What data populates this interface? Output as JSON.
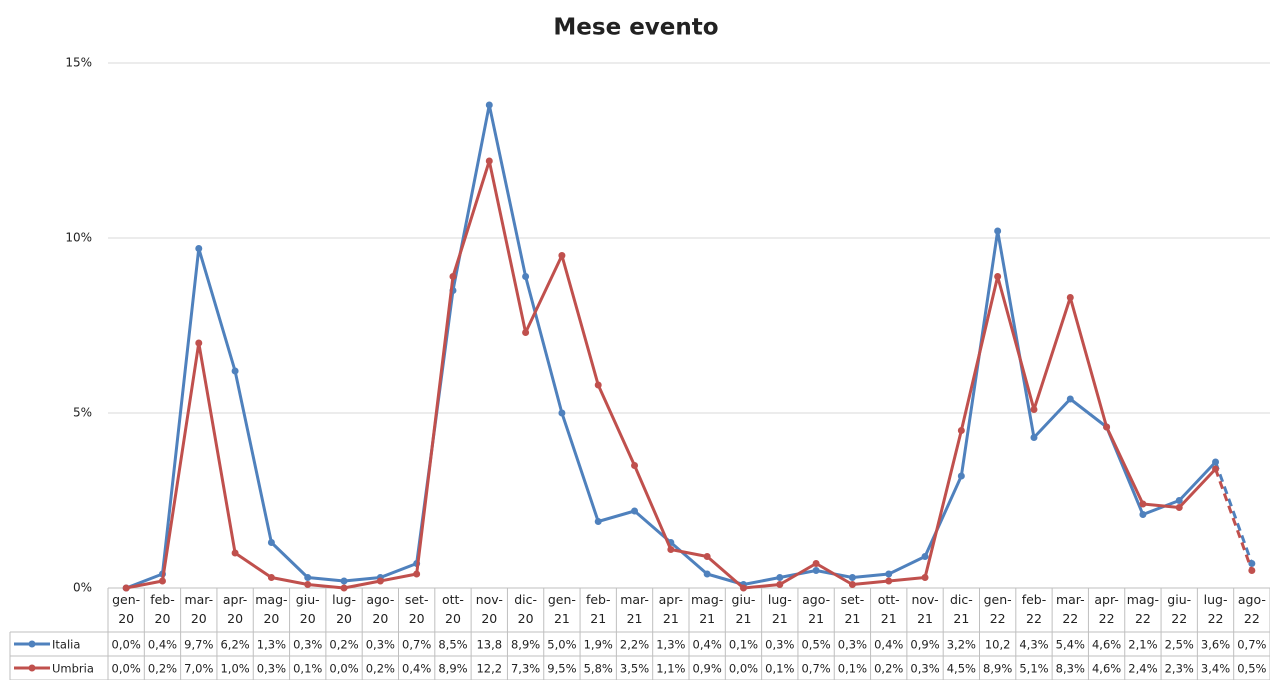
{
  "chart_data": {
    "type": "line",
    "title": "Mese evento",
    "categories": [
      "gen-20",
      "feb-20",
      "mar-20",
      "apr-20",
      "mag-20",
      "giu-20",
      "lug-20",
      "ago-20",
      "set-20",
      "ott-20",
      "nov-20",
      "dic-20",
      "gen-21",
      "feb-21",
      "mar-21",
      "apr-21",
      "mag-21",
      "giu-21",
      "lug-21",
      "ago-21",
      "set-21",
      "ott-21",
      "nov-21",
      "dic-21",
      "gen-22",
      "feb-22",
      "mar-22",
      "apr-22",
      "mag-22",
      "giu-22",
      "lug-22",
      "ago-22"
    ],
    "series": [
      {
        "name": "Italia",
        "color": "#4f81bd",
        "values": [
          0.0,
          0.4,
          9.7,
          6.2,
          1.3,
          0.3,
          0.2,
          0.3,
          0.7,
          8.5,
          13.8,
          8.9,
          5.0,
          1.9,
          2.2,
          1.3,
          0.4,
          0.1,
          0.3,
          0.5,
          0.3,
          0.4,
          0.9,
          3.2,
          10.2,
          4.3,
          5.4,
          4.6,
          2.1,
          2.5,
          3.6,
          0.7
        ],
        "value_labels": [
          "0,0%",
          "0,4%",
          "9,7%",
          "6,2%",
          "1,3%",
          "0,3%",
          "0,2%",
          "0,3%",
          "0,7%",
          "8,5%",
          "13,8",
          "8,9%",
          "5,0%",
          "1,9%",
          "2,2%",
          "1,3%",
          "0,4%",
          "0,1%",
          "0,3%",
          "0,5%",
          "0,3%",
          "0,4%",
          "0,9%",
          "3,2%",
          "10,2",
          "4,3%",
          "5,4%",
          "4,6%",
          "2,1%",
          "2,5%",
          "3,6%",
          "0,7%"
        ]
      },
      {
        "name": "Umbria",
        "color": "#c0504d",
        "values": [
          0.0,
          0.2,
          7.0,
          1.0,
          0.3,
          0.1,
          0.0,
          0.2,
          0.4,
          8.9,
          12.2,
          7.3,
          9.5,
          5.8,
          3.5,
          1.1,
          0.9,
          0.0,
          0.1,
          0.7,
          0.1,
          0.2,
          0.3,
          4.5,
          8.9,
          5.1,
          8.3,
          4.6,
          2.4,
          2.3,
          3.4,
          0.5
        ],
        "value_labels": [
          "0,0%",
          "0,2%",
          "7,0%",
          "1,0%",
          "0,3%",
          "0,1%",
          "0,0%",
          "0,2%",
          "0,4%",
          "8,9%",
          "12,2",
          "7,3%",
          "9,5%",
          "5,8%",
          "3,5%",
          "1,1%",
          "0,9%",
          "0,0%",
          "0,1%",
          "0,7%",
          "0,1%",
          "0,2%",
          "0,3%",
          "4,5%",
          "8,9%",
          "5,1%",
          "8,3%",
          "4,6%",
          "2,4%",
          "2,3%",
          "3,4%",
          "0,5%"
        ]
      }
    ],
    "ylim": [
      0,
      15
    ],
    "yticks": [
      {
        "value": 0,
        "label": "0%"
      },
      {
        "value": 5,
        "label": "5%"
      },
      {
        "value": 10,
        "label": "10%"
      },
      {
        "value": 15,
        "label": "15%"
      }
    ],
    "grid": true,
    "dashed_last_segment": true
  }
}
